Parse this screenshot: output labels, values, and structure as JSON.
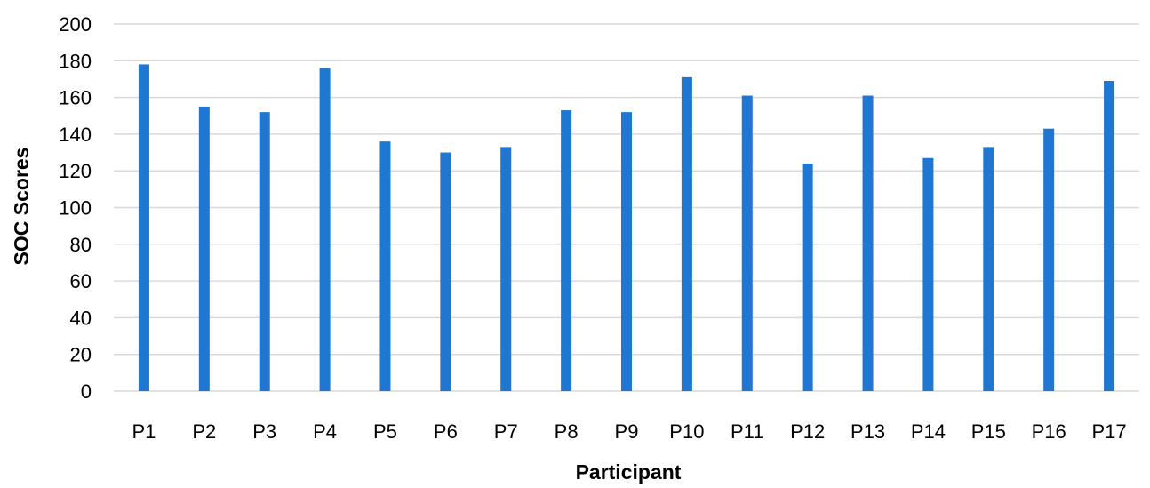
{
  "chart_data": {
    "type": "bar",
    "title": "",
    "xlabel": "Participant",
    "ylabel": "SOC Scores",
    "ylim": [
      0,
      200
    ],
    "ytick_step": 20,
    "grid": true,
    "legend": "none",
    "categories": [
      "P1",
      "P2",
      "P3",
      "P4",
      "P5",
      "P6",
      "P7",
      "P8",
      "P9",
      "P10",
      "P11",
      "P12",
      "P13",
      "P14",
      "P15",
      "P16",
      "P17"
    ],
    "series": [
      {
        "values": [
          178,
          155,
          152,
          176,
          136,
          130,
          133,
          153,
          152,
          171,
          161,
          124,
          161,
          127,
          133,
          143,
          169
        ],
        "color": "#1f77d2"
      }
    ]
  },
  "colors": {
    "bar": "#1f77d2",
    "grid": "#d9d9d9",
    "text": "#000000"
  }
}
